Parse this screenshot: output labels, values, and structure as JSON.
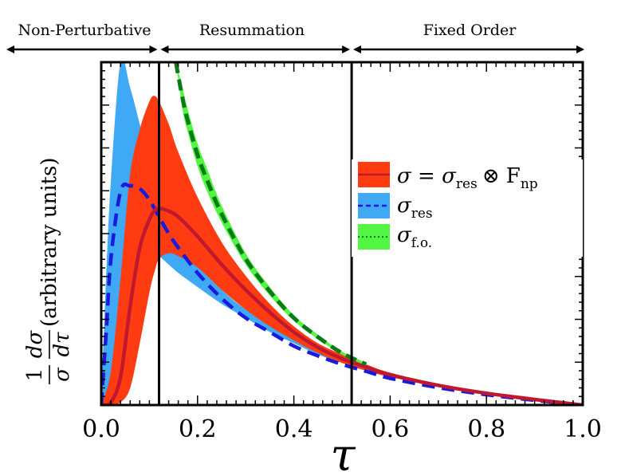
{
  "chart_data": {
    "type": "area",
    "xlabel": "τ",
    "ylabel_fraction": {
      "num1": "1",
      "den1": "σ",
      "num2": "dσ",
      "den2": "dτ",
      "text": "(arbitrary units)"
    },
    "xlim": [
      0.0,
      1.0
    ],
    "ylim": [
      0.0,
      1.22
    ],
    "x_ticks": [
      "0.0",
      "0.2",
      "0.4",
      "0.6",
      "0.8",
      "1.0"
    ],
    "x_tick_values": [
      0.0,
      0.2,
      0.4,
      0.6,
      0.8,
      1.0
    ],
    "regions": [
      {
        "label": "Non-Perturbative",
        "from": 0.0,
        "to": 0.12
      },
      {
        "label": "Resummation",
        "from": 0.12,
        "to": 0.52
      },
      {
        "label": "Fixed Order",
        "from": 0.52,
        "to": 1.0
      }
    ],
    "boundaries": [
      0.12,
      0.52
    ],
    "series": [
      {
        "name": "σ_res",
        "legend_main": "σ",
        "legend_sub": "res",
        "band_color": "#3fa9f5",
        "line_color": "#1a1adf",
        "line_style": "dashed",
        "x": [
          0.0,
          0.01,
          0.02,
          0.04,
          0.06,
          0.08,
          0.1,
          0.12,
          0.14,
          0.16,
          0.2,
          0.25,
          0.3,
          0.35,
          0.4,
          0.45,
          0.5,
          0.55,
          0.6,
          0.7,
          0.8,
          0.9,
          1.0
        ],
        "upper": [
          0.0,
          0.45,
          0.8,
          1.22,
          1.13,
          1.0,
          0.88,
          0.77,
          0.68,
          0.61,
          0.5,
          0.41,
          0.34,
          0.29,
          0.24,
          0.2,
          0.165,
          0.135,
          0.11,
          0.075,
          0.045,
          0.022,
          0.0
        ],
        "lower": [
          0.0,
          0.0,
          0.03,
          0.18,
          0.42,
          0.52,
          0.55,
          0.53,
          0.5,
          0.47,
          0.42,
          0.36,
          0.31,
          0.26,
          0.22,
          0.18,
          0.15,
          0.122,
          0.1,
          0.066,
          0.038,
          0.018,
          0.0
        ],
        "central": [
          0.0,
          0.25,
          0.52,
          0.76,
          0.78,
          0.77,
          0.73,
          0.67,
          0.61,
          0.56,
          0.47,
          0.38,
          0.31,
          0.26,
          0.21,
          0.175,
          0.145,
          0.12,
          0.095,
          0.062,
          0.037,
          0.017,
          0.0
        ]
      },
      {
        "name": "σ = σ_res ⊗ F_np",
        "legend_main": "σ = σ",
        "legend_sub": "res",
        "legend_tail": "⊗ F",
        "legend_tail_sub": "np",
        "band_color": "#ff3b12",
        "line_color": "#c0182e",
        "line_style": "solid",
        "x": [
          0.0,
          0.02,
          0.04,
          0.06,
          0.08,
          0.1,
          0.11,
          0.12,
          0.14,
          0.16,
          0.2,
          0.25,
          0.3,
          0.35,
          0.4,
          0.45,
          0.5,
          0.55,
          0.6,
          0.7,
          0.8,
          0.9,
          1.0
        ],
        "upper": [
          0.0,
          0.12,
          0.45,
          0.82,
          0.98,
          1.08,
          1.1,
          1.08,
          1.0,
          0.9,
          0.74,
          0.58,
          0.46,
          0.36,
          0.28,
          0.22,
          0.18,
          0.145,
          0.115,
          0.075,
          0.046,
          0.022,
          0.0
        ],
        "lower": [
          0.0,
          0.0,
          0.01,
          0.06,
          0.22,
          0.4,
          0.47,
          0.52,
          0.54,
          0.53,
          0.49,
          0.41,
          0.34,
          0.28,
          0.23,
          0.185,
          0.15,
          0.122,
          0.1,
          0.066,
          0.039,
          0.018,
          0.0
        ],
        "central": [
          0.0,
          0.01,
          0.1,
          0.35,
          0.56,
          0.66,
          0.69,
          0.7,
          0.69,
          0.67,
          0.6,
          0.5,
          0.41,
          0.33,
          0.26,
          0.205,
          0.165,
          0.135,
          0.108,
          0.07,
          0.042,
          0.02,
          0.0
        ]
      },
      {
        "name": "σ_f.o.",
        "legend_main": "σ",
        "legend_sub": "f.o.",
        "band_color": "#52f542",
        "line_color": "#0a7a18",
        "line_style": "dashed",
        "x": [
          0.155,
          0.17,
          0.18,
          0.2,
          0.22,
          0.25,
          0.3,
          0.35,
          0.4,
          0.45,
          0.5,
          0.55
        ],
        "upper": [
          1.22,
          1.12,
          1.05,
          0.93,
          0.84,
          0.71,
          0.54,
          0.42,
          0.32,
          0.25,
          0.19,
          0.15
        ],
        "lower": [
          1.22,
          1.04,
          0.97,
          0.85,
          0.76,
          0.65,
          0.5,
          0.39,
          0.3,
          0.235,
          0.18,
          0.14
        ],
        "central": [
          1.22,
          1.08,
          1.01,
          0.89,
          0.8,
          0.68,
          0.52,
          0.405,
          0.31,
          0.242,
          0.185,
          0.145
        ]
      }
    ],
    "legend_position": "right",
    "grid": false
  }
}
